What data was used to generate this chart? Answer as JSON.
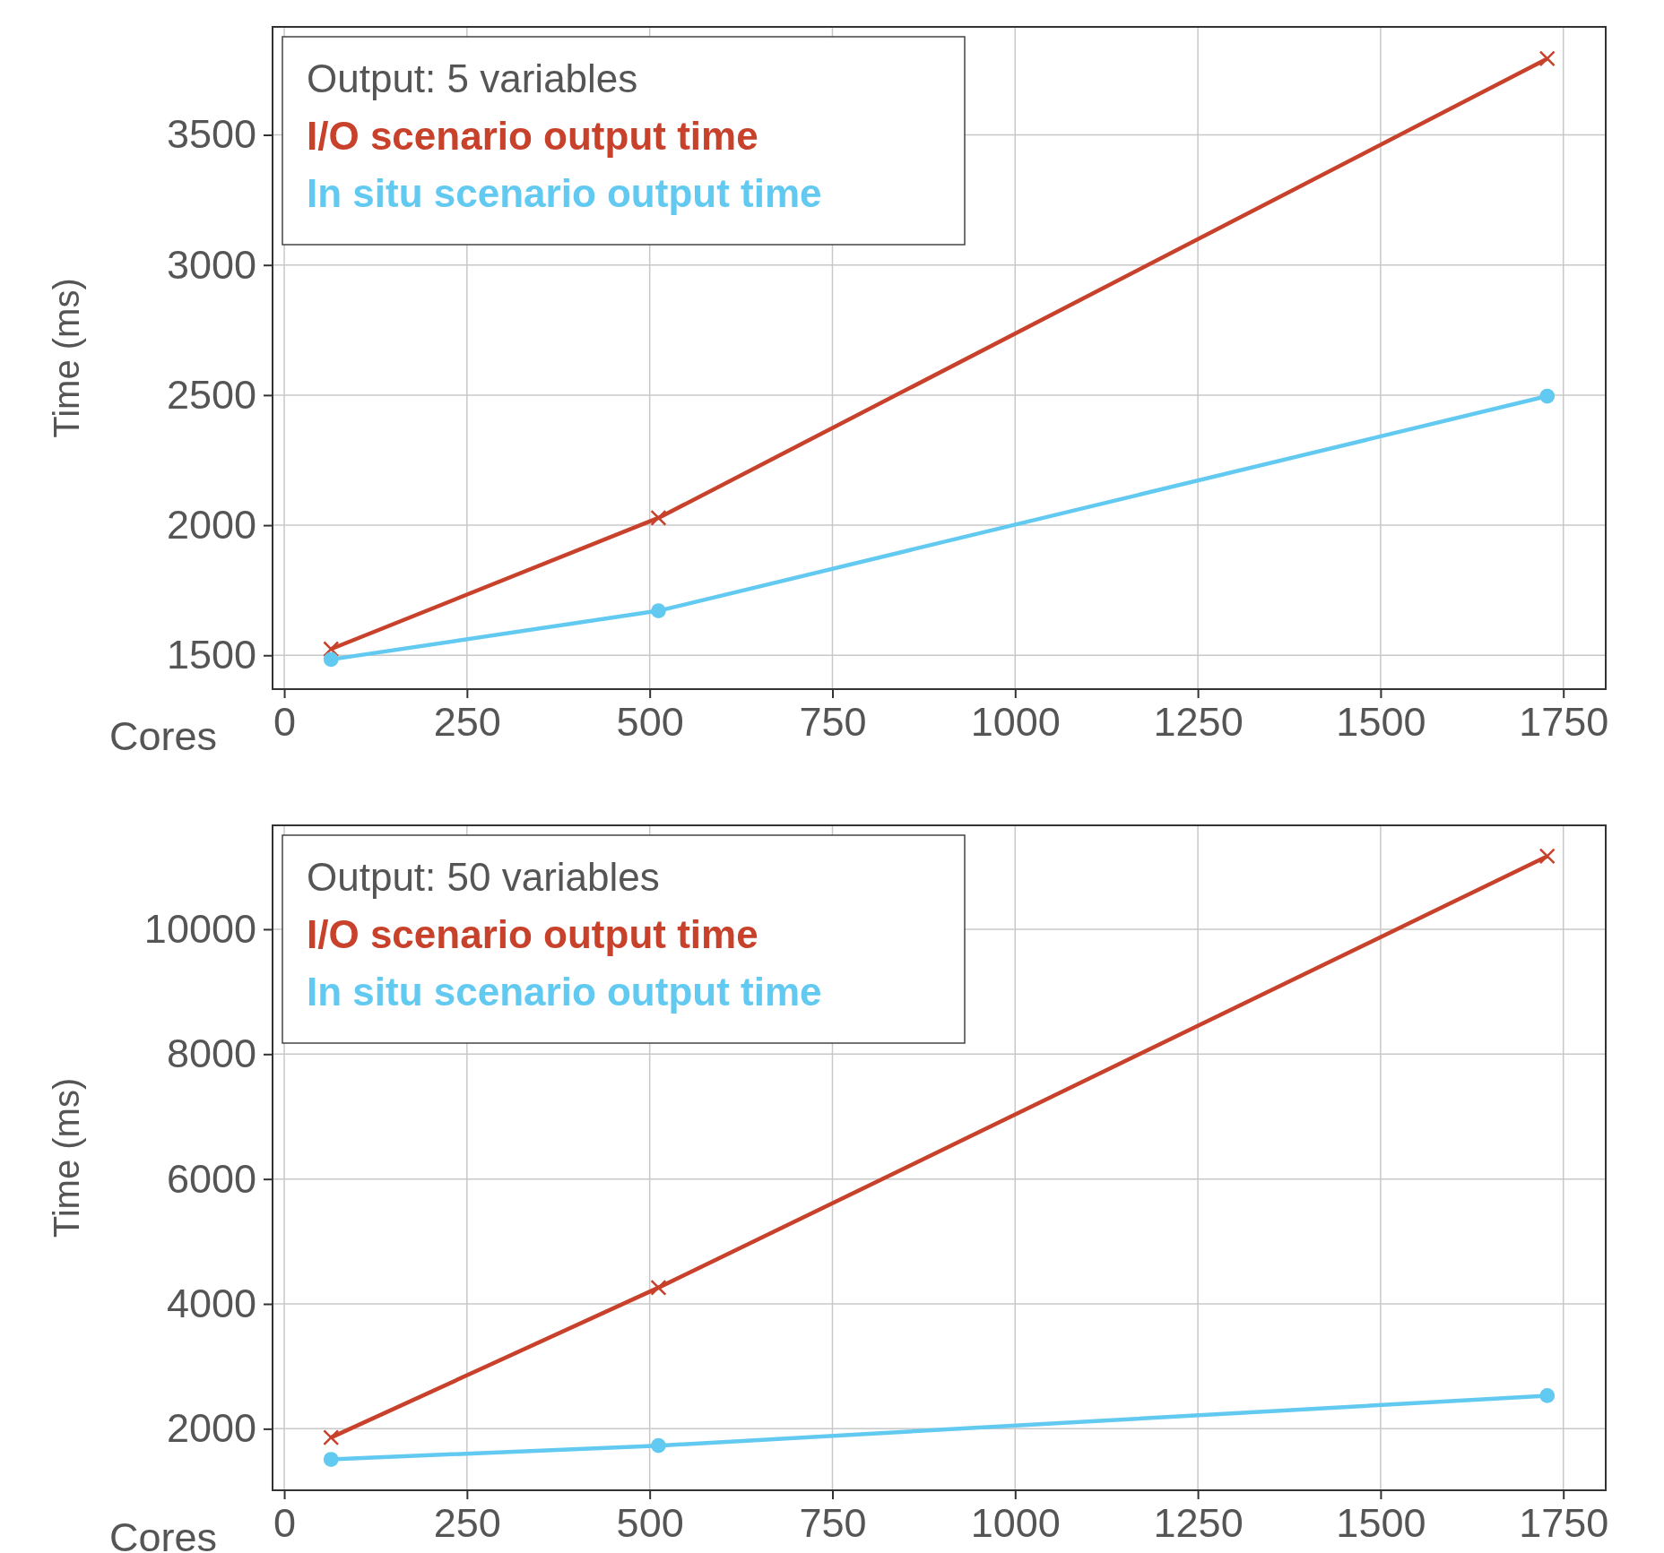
{
  "chart_data": [
    {
      "type": "line",
      "xlabel": "Cores",
      "ylabel": "Time (ms)",
      "legend_title": "Output: 5 variables",
      "legend": "top left",
      "grid": true,
      "x": [
        64,
        512,
        1728
      ],
      "xlim": [
        -16,
        1808
      ],
      "xticks": [
        0,
        250,
        500,
        750,
        1000,
        1250,
        1500,
        1750
      ],
      "ylim": [
        1370,
        3915
      ],
      "yticks": [
        1500,
        2000,
        2500,
        3000,
        3500
      ],
      "series": [
        {
          "name": "I/O scenario output time",
          "color": "#c8412b",
          "marker": "cross",
          "values": [
            1524,
            2028,
            3793
          ]
        },
        {
          "name": "In situ scenario output time",
          "color": "#62c9f0",
          "marker": "circle",
          "values": [
            1484,
            1671,
            2496
          ]
        }
      ]
    },
    {
      "type": "line",
      "xlabel": "Cores",
      "ylabel": "Time (ms)",
      "legend_title": "Output: 50 variables",
      "legend": "top left",
      "grid": true,
      "x": [
        64,
        512,
        1728
      ],
      "xlim": [
        -16,
        1808
      ],
      "xticks": [
        0,
        250,
        500,
        750,
        1000,
        1250,
        1500,
        1750
      ],
      "ylim": [
        1015,
        11664
      ],
      "yticks": [
        2000,
        4000,
        6000,
        8000,
        10000
      ],
      "series": [
        {
          "name": "I/O scenario output time",
          "color": "#c8412b",
          "marker": "cross",
          "values": [
            1860,
            4260,
            11170
          ]
        },
        {
          "name": "In situ scenario output time",
          "color": "#62c9f0",
          "marker": "circle",
          "values": [
            1510,
            1730,
            2530
          ]
        }
      ]
    }
  ]
}
